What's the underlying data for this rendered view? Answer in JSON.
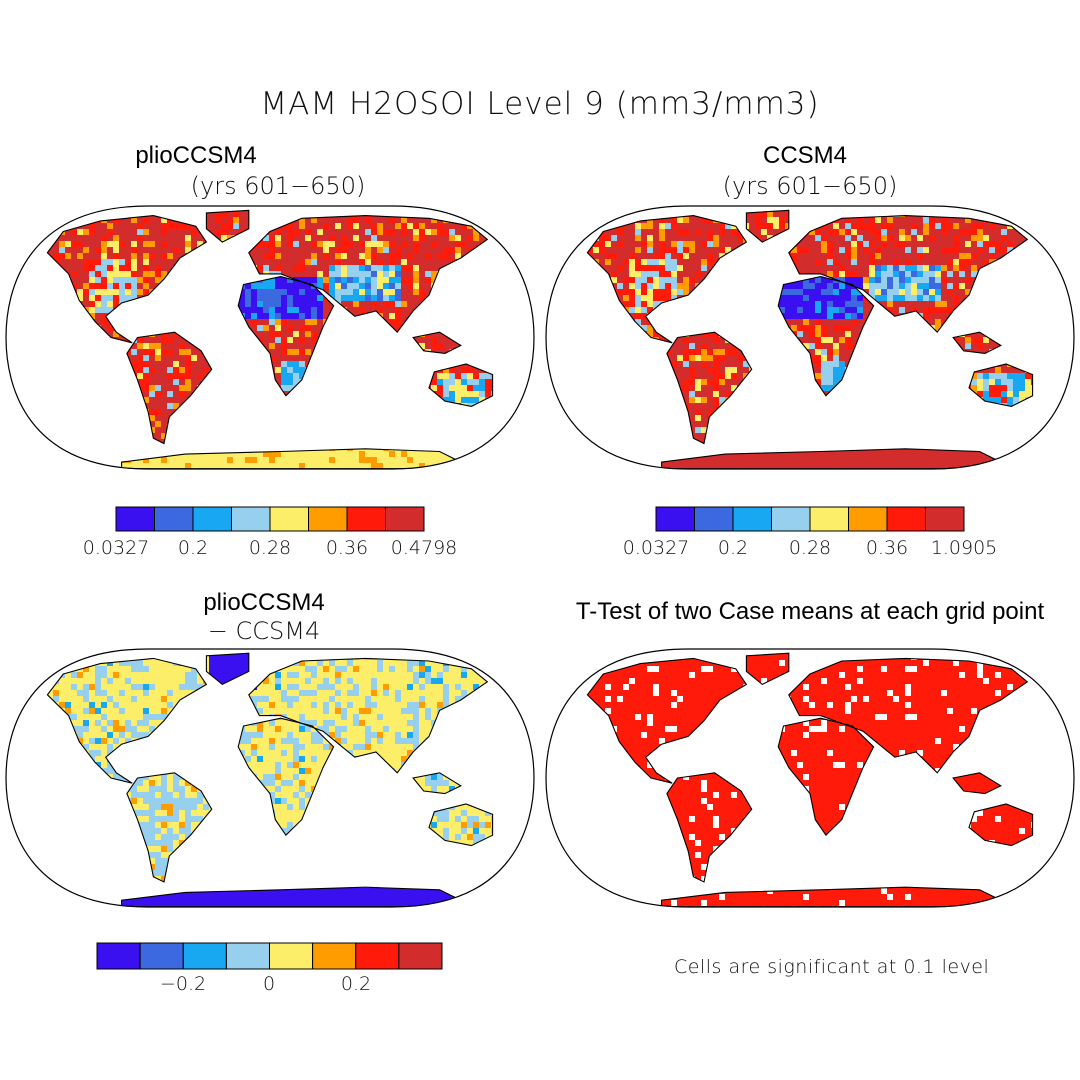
{
  "title": "MAM H2OSOI Level 9 (mm3/mm3)",
  "panels": [
    {
      "id": "plio",
      "title": "plioCCSM4",
      "subtitle": "(yrs 601−650)",
      "colorbar": {
        "colors": [
          "#3a10f0",
          "#3c68e0",
          "#18a8f2",
          "#96d0ee",
          "#fcee68",
          "#ff9c00",
          "#ff1a0a",
          "#d32c2c"
        ],
        "labels": [
          "0.0327",
          "0.2",
          "0.28",
          "0.36",
          "0.4798"
        ]
      }
    },
    {
      "id": "ccsm4",
      "title": "CCSM4",
      "subtitle": "(yrs 601−650)",
      "colorbar": {
        "colors": [
          "#3a10f0",
          "#3c68e0",
          "#18a8f2",
          "#96d0ee",
          "#fcee68",
          "#ff9c00",
          "#ff1a0a",
          "#d32c2c"
        ],
        "labels": [
          "0.0327",
          "0.2",
          "0.28",
          "0.36",
          "1.0905"
        ]
      }
    },
    {
      "id": "diff",
      "title": "plioCCSM4",
      "subtitle": "− CCSM4",
      "colorbar": {
        "colors": [
          "#3a10f0",
          "#3c68e0",
          "#18a8f2",
          "#96d0ee",
          "#fcee68",
          "#ff9c00",
          "#ff1a0a",
          "#d32c2c"
        ],
        "labels": [
          "−0.2",
          "0",
          "0.2"
        ]
      }
    },
    {
      "id": "ttest",
      "title": "T-Test of two Case means at each grid point",
      "footnote": "Cells are significant at 0.1 level"
    }
  ]
}
